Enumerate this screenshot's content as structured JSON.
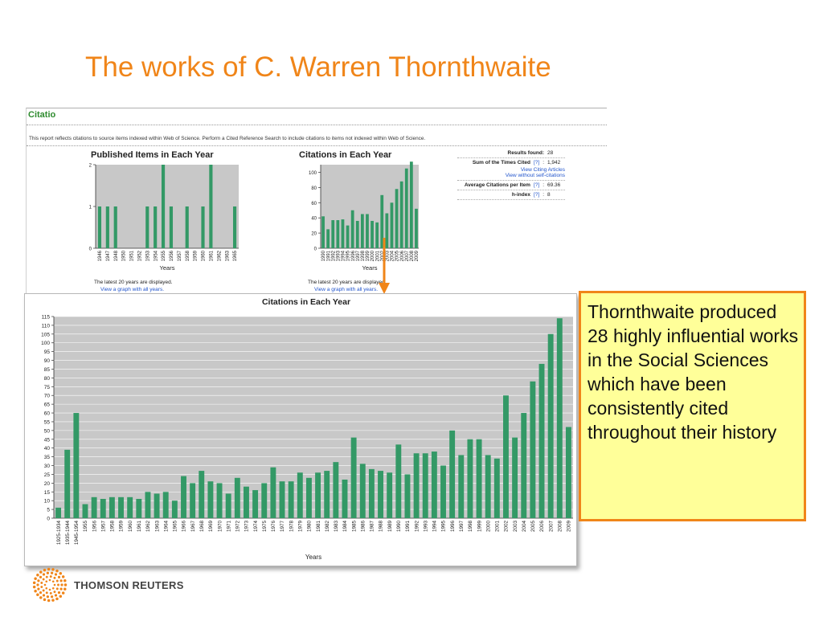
{
  "slide": {
    "title": "The works of C. Warren Thornthwaite"
  },
  "report": {
    "header": "Citatio",
    "note": "This report reflects citations to source items indexed within Web of Science. Perform a Cited Reference Search to include citations to items not indexed within Web of Science.",
    "published_note": "The latest 20 years are displayed.",
    "published_link": "View a graph with all years.",
    "citations_note": "The latest 20 years are displayed.",
    "citations_link": "View a graph with all years.",
    "stats": {
      "results_found_label": "Results found:",
      "results_found_value": "28",
      "sum_label": "Sum of the Times Cited",
      "help": "[?]",
      "sum_value": "1,942",
      "view_citing": "View Citing Articles",
      "view_without": "View without self-citations",
      "avg_label": "Average Citations per Item",
      "avg_value": "69.36",
      "hindex_label": "h-index",
      "hindex_value": "8"
    }
  },
  "callout": {
    "text": "Thornthwaite produced 28 highly influential works in the Social Sciences which have been consistently cited throughout their history"
  },
  "logo": {
    "text": "THOMSON REUTERS"
  },
  "colors": {
    "title": "#f08519",
    "bar": "#339966",
    "plot_bg": "#c8c8c8",
    "callout_bg": "#ffff99",
    "callout_border": "#f08519"
  },
  "chart_data": [
    {
      "type": "bar",
      "title": "Published Items in Each Year",
      "xlabel": "Years",
      "ylabel": "",
      "ylim": [
        0,
        2
      ],
      "yticks": [
        0,
        1,
        2
      ],
      "grid": false,
      "categories": [
        "1946",
        "1947",
        "1948",
        "1950",
        "1951",
        "1952",
        "1953",
        "1954",
        "1955",
        "1956",
        "1957",
        "1958",
        "1959",
        "1960",
        "1961",
        "1962",
        "1963",
        "1965"
      ],
      "values": [
        1,
        1,
        1,
        0,
        0,
        0,
        1,
        1,
        2,
        1,
        0,
        1,
        0,
        1,
        2,
        0,
        0,
        1
      ]
    },
    {
      "type": "bar",
      "title": "Citations in Each Year",
      "xlabel": "Years",
      "ylabel": "",
      "ylim": [
        0,
        110
      ],
      "yticks": [
        0,
        20,
        40,
        60,
        80,
        100
      ],
      "grid": false,
      "categories": [
        "1990",
        "1991",
        "1992",
        "1993",
        "1994",
        "1995",
        "1996",
        "1997",
        "1998",
        "1999",
        "2000",
        "2001",
        "2002",
        "2003",
        "2004",
        "2005",
        "2006",
        "2007",
        "2008",
        "2009"
      ],
      "values": [
        42,
        25,
        37,
        37,
        38,
        30,
        50,
        36,
        45,
        45,
        36,
        34,
        70,
        46,
        60,
        78,
        88,
        105,
        114,
        52
      ]
    },
    {
      "type": "bar",
      "title": "Citations in Each Year",
      "xlabel": "Years",
      "ylabel": "",
      "ylim": [
        0,
        115
      ],
      "yticks": [
        0,
        5,
        10,
        15,
        20,
        25,
        30,
        35,
        40,
        45,
        50,
        55,
        60,
        65,
        70,
        75,
        80,
        85,
        90,
        95,
        100,
        105,
        110,
        115
      ],
      "grid": true,
      "categories": [
        "1925-1934",
        "1935-1944",
        "1945-1954",
        "1955",
        "1956",
        "1957",
        "1958",
        "1959",
        "1960",
        "1961",
        "1962",
        "1963",
        "1964",
        "1965",
        "1966",
        "1967",
        "1968",
        "1969",
        "1970",
        "1971",
        "1972",
        "1973",
        "1974",
        "1975",
        "1976",
        "1977",
        "1978",
        "1979",
        "1980",
        "1981",
        "1982",
        "1983",
        "1984",
        "1985",
        "1986",
        "1987",
        "1988",
        "1989",
        "1990",
        "1991",
        "1992",
        "1993",
        "1994",
        "1995",
        "1996",
        "1997",
        "1998",
        "1999",
        "2000",
        "2001",
        "2002",
        "2003",
        "2004",
        "2005",
        "2006",
        "2007",
        "2008",
        "2009"
      ],
      "values": [
        6,
        39,
        60,
        8,
        12,
        11,
        12,
        12,
        12,
        11,
        15,
        14,
        15,
        10,
        24,
        20,
        27,
        21,
        20,
        14,
        23,
        18,
        16,
        20,
        29,
        21,
        21,
        26,
        23,
        26,
        27,
        32,
        22,
        46,
        31,
        28,
        27,
        26,
        42,
        25,
        37,
        37,
        38,
        30,
        50,
        36,
        45,
        45,
        36,
        34,
        70,
        46,
        60,
        78,
        88,
        105,
        114,
        52
      ]
    }
  ]
}
